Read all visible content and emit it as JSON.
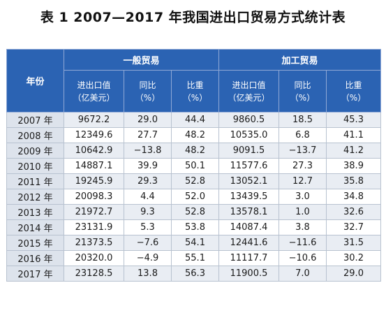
{
  "title": "表 1  2007—2017 年我国进出口贸易方式统计表",
  "table": {
    "year_header": "年份",
    "groups": [
      "一般贸易",
      "加工贸易"
    ],
    "columns": [
      {
        "line1": "进出口值",
        "line2": "（亿美元）"
      },
      {
        "line1": "同比",
        "line2": "（%）"
      },
      {
        "line1": "比重",
        "line2": "（%）"
      },
      {
        "line1": "进出口值",
        "line2": "（亿美元）"
      },
      {
        "line1": "同比",
        "line2": "（%）"
      },
      {
        "line1": "比重",
        "line2": "（%）"
      }
    ],
    "rows": [
      [
        "2007 年",
        "9672.2",
        "29.0",
        "44.4",
        "9860.5",
        "18.5",
        "45.3"
      ],
      [
        "2008 年",
        "12349.6",
        "27.7",
        "48.2",
        "10535.0",
        "6.8",
        "41.1"
      ],
      [
        "2009 年",
        "10642.9",
        "−13.8",
        "48.2",
        "9091.5",
        "−13.7",
        "41.2"
      ],
      [
        "2010 年",
        "14887.1",
        "39.9",
        "50.1",
        "11577.6",
        "27.3",
        "38.9"
      ],
      [
        "2011 年",
        "19245.9",
        "29.3",
        "52.8",
        "13052.1",
        "12.7",
        "35.8"
      ],
      [
        "2012 年",
        "20098.3",
        "4.4",
        "52.0",
        "13439.5",
        "3.0",
        "34.8"
      ],
      [
        "2013 年",
        "21972.7",
        "9.3",
        "52.8",
        "13578.1",
        "1.0",
        "32.6"
      ],
      [
        "2014 年",
        "23131.9",
        "5.3",
        "53.8",
        "14087.4",
        "3.8",
        "32.7"
      ],
      [
        "2015 年",
        "21373.5",
        "−7.6",
        "54.1",
        "12441.6",
        "−11.6",
        "31.5"
      ],
      [
        "2016 年",
        "20320.0",
        "−4.9",
        "55.1",
        "11117.7",
        "−10.6",
        "30.2"
      ],
      [
        "2017 年",
        "23128.5",
        "13.8",
        "56.3",
        "11900.5",
        "7.0",
        "29.0"
      ]
    ]
  },
  "colors": {
    "header_bg": "#2b63b3",
    "header_text": "#ffffff",
    "year_bg": "#dde3ec",
    "stripe_bg": "#e9edf3"
  }
}
